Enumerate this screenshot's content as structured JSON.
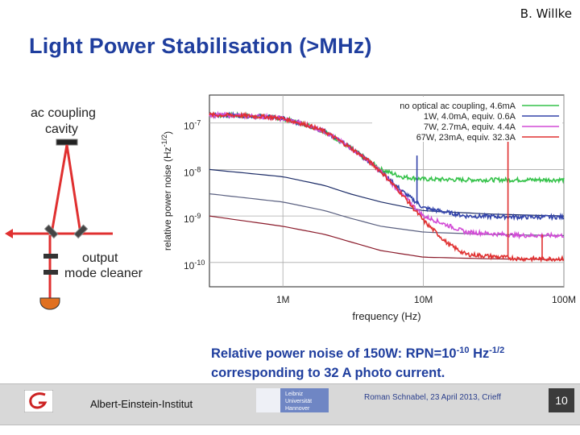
{
  "header": {
    "author": "B. Willke",
    "title": "Light Power Stabilisation (>MHz)"
  },
  "schematic": {
    "label_ac_coupling": "ac coupling",
    "label_cavity": "cavity",
    "label_output": "output",
    "label_mode_cleaner": "mode cleaner"
  },
  "caption": {
    "line1_prefix": "Relative power noise of 150W: RPN=10",
    "line1_exp": "-10",
    "line1_unit": " Hz",
    "line1_unit_exp": "-1/2",
    "line2": "corresponding to  32 A photo current."
  },
  "footer": {
    "institute": "Albert-Einstein-Institut",
    "talk": "Roman Schnabel, 23 April 2013, Crieff",
    "page": "10",
    "uni_logo_text": [
      "Leibniz",
      "Universität",
      "Hannover"
    ]
  },
  "colors": {
    "title": "#1f3e9e",
    "green": "#35c24a",
    "blue": "#3344aa",
    "magenta": "#d24bd6",
    "red": "#e03030",
    "darkblue": "#1b2b66",
    "darkred": "#8a1a2a"
  },
  "chart_data": {
    "type": "line",
    "xlabel": "frequency (Hz)",
    "ylabel": "relative power noise (Hz",
    "ylabel_exp": "-1/2",
    "xscale": "log",
    "yscale": "log",
    "xlim": [
      300000,
      100000000
    ],
    "ylim": [
      3e-11,
      4e-07
    ],
    "xticks": [
      {
        "value": 1000000,
        "label": "1M"
      },
      {
        "value": 10000000,
        "label": "10M"
      },
      {
        "value": 100000000,
        "label": "100M"
      }
    ],
    "yticks": [
      {
        "value": 1e-07,
        "base": "10",
        "exp": "-7"
      },
      {
        "value": 1e-08,
        "base": "10",
        "exp": "-8"
      },
      {
        "value": 1e-09,
        "base": "10",
        "exp": "-9"
      },
      {
        "value": 1e-10,
        "base": "10",
        "exp": "-10"
      }
    ],
    "grid": true,
    "legend_position": "top-right",
    "series": [
      {
        "name": "no optical ac coupling, 4.6mA",
        "color": "#35c24a",
        "x": [
          300000,
          500000,
          800000,
          1000000,
          1500000,
          2000000,
          3000000,
          4000000,
          5000000,
          7000000,
          10000000,
          20000000,
          50000000,
          100000000
        ],
        "y": [
          1.5e-07,
          1.45e-07,
          1.35e-07,
          1.25e-07,
          9e-08,
          6.5e-08,
          3e-08,
          1.6e-08,
          1e-08,
          7e-09,
          6.2e-09,
          6e-09,
          6e-09,
          6e-09
        ]
      },
      {
        "name": "1W, 4.0mA, equiv.  0.6A",
        "color": "#3344aa",
        "x": [
          300000,
          500000,
          800000,
          1000000,
          1500000,
          2000000,
          3000000,
          4000000,
          5000000,
          7000000,
          10000000,
          20000000,
          50000000,
          100000000
        ],
        "y": [
          1.5e-07,
          1.45e-07,
          1.35e-07,
          1.25e-07,
          9e-08,
          6.5e-08,
          3e-08,
          1.6e-08,
          9e-09,
          3.5e-09,
          1.5e-09,
          1e-09,
          9.5e-10,
          9.5e-10
        ]
      },
      {
        "name": "7W, 2.7mA, equiv.  4.4A",
        "color": "#d24bd6",
        "x": [
          300000,
          500000,
          800000,
          1000000,
          1500000,
          2000000,
          3000000,
          4000000,
          5000000,
          7000000,
          10000000,
          20000000,
          50000000,
          100000000
        ],
        "y": [
          1.5e-07,
          1.45e-07,
          1.35e-07,
          1.25e-07,
          9e-08,
          6.5e-08,
          3e-08,
          1.6e-08,
          9e-09,
          3e-09,
          1e-09,
          4.5e-10,
          3.8e-10,
          3.8e-10
        ]
      },
      {
        "name": "67W, 23mA, equiv. 32.3A",
        "color": "#e03030",
        "x": [
          300000,
          500000,
          800000,
          1000000,
          1500000,
          2000000,
          3000000,
          4000000,
          5000000,
          7000000,
          10000000,
          15000000,
          20000000,
          50000000,
          100000000
        ],
        "y": [
          1.5e-07,
          1.45e-07,
          1.35e-07,
          1.25e-07,
          9e-08,
          6.5e-08,
          3e-08,
          1.6e-08,
          9e-09,
          3e-09,
          8e-10,
          2.5e-10,
          1.5e-10,
          1.2e-10,
          1.2e-10
        ]
      },
      {
        "name": "",
        "color": "#1b2b66",
        "x": [
          300000,
          1000000,
          2000000,
          3000000,
          5000000,
          10000000,
          30000000,
          100000000
        ],
        "y": [
          1e-08,
          7e-09,
          4.5e-09,
          3e-09,
          2e-09,
          1.3e-09,
          1.1e-09,
          1e-09
        ]
      },
      {
        "name": "",
        "color": "#5a6080",
        "x": [
          300000,
          1000000,
          2000000,
          3000000,
          5000000,
          10000000,
          30000000,
          100000000
        ],
        "y": [
          3e-09,
          2e-09,
          1.3e-09,
          9e-10,
          6e-10,
          4.5e-10,
          4e-10,
          3.8e-10
        ]
      },
      {
        "name": "",
        "color": "#8a1a2a",
        "x": [
          300000,
          1000000,
          2000000,
          3000000,
          5000000,
          10000000,
          30000000,
          100000000
        ],
        "y": [
          1e-09,
          6e-10,
          4e-10,
          2.8e-10,
          1.8e-10,
          1.3e-10,
          1.2e-10,
          1.15e-10
        ]
      }
    ],
    "spikes": [
      {
        "x": 9000000,
        "y": 2e-08,
        "base_series": 1,
        "color": "#3344aa"
      },
      {
        "x": 40000000,
        "y": 2e-07,
        "base_series": 3,
        "color": "#e03030"
      },
      {
        "x": 70000000,
        "y": 4e-10,
        "base_series": 3,
        "color": "#e03030"
      }
    ]
  }
}
